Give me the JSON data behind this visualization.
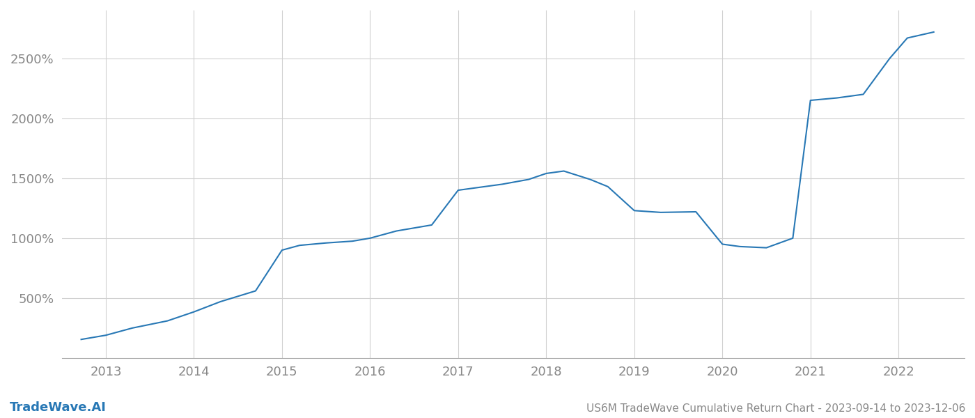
{
  "x_years": [
    2012.72,
    2013.0,
    2013.3,
    2013.7,
    2014.0,
    2014.3,
    2014.7,
    2015.0,
    2015.2,
    2015.5,
    2015.8,
    2016.0,
    2016.3,
    2016.7,
    2017.0,
    2017.3,
    2017.5,
    2017.8,
    2018.0,
    2018.2,
    2018.5,
    2018.7,
    2019.0,
    2019.3,
    2019.7,
    2020.0,
    2020.2,
    2020.5,
    2020.8,
    2021.0,
    2021.3,
    2021.6,
    2021.9,
    2022.1,
    2022.4
  ],
  "y_values": [
    155,
    190,
    250,
    310,
    385,
    470,
    560,
    900,
    940,
    960,
    975,
    1000,
    1060,
    1110,
    1400,
    1430,
    1450,
    1490,
    1540,
    1560,
    1490,
    1430,
    1230,
    1215,
    1220,
    950,
    930,
    920,
    1000,
    2150,
    2170,
    2200,
    2500,
    2670,
    2720
  ],
  "line_color": "#2878b5",
  "background_color": "#ffffff",
  "grid_color": "#d0d0d0",
  "axis_label_color": "#888888",
  "title_text": "US6M TradeWave Cumulative Return Chart - 2023-09-14 to 2023-12-06",
  "watermark_text": "TradeWave.AI",
  "x_ticks": [
    2013,
    2014,
    2015,
    2016,
    2017,
    2018,
    2019,
    2020,
    2021,
    2022
  ],
  "y_ticks": [
    500,
    1000,
    1500,
    2000,
    2500
  ],
  "ylim": [
    0,
    2900
  ],
  "xlim": [
    2012.5,
    2022.75
  ]
}
